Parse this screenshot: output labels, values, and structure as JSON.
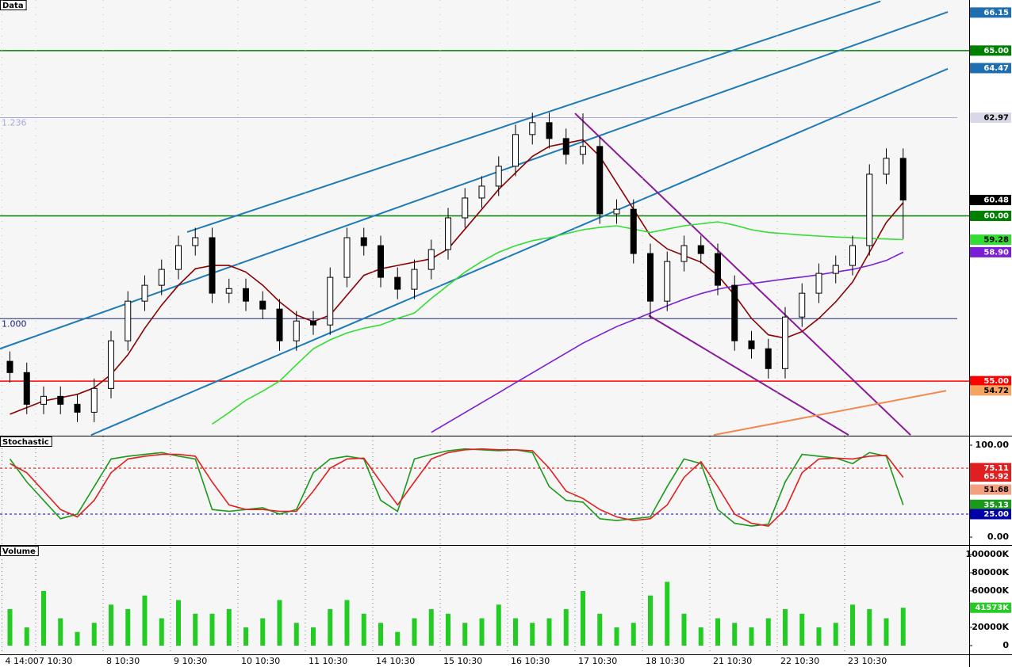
{
  "chart_data": [
    {
      "type": "candlestick",
      "title": "Data",
      "ylim": [
        53.35,
        66.53
      ],
      "open": [
        55.6,
        55.26,
        54.3,
        54.54,
        54.3,
        54.06,
        54.78,
        56.22,
        57.42,
        57.9,
        58.38,
        59.1,
        59.34,
        57.66,
        57.8,
        57.42,
        57.18,
        56.22,
        56.82,
        56.7,
        58.14,
        59.34,
        59.1,
        58.14,
        57.78,
        58.38,
        58.98,
        59.94,
        60.54,
        60.9,
        61.5,
        62.46,
        62.82,
        62.34,
        61.86,
        62.1,
        60.06,
        60.2,
        58.86,
        57.42,
        58.62,
        59.1,
        58.86,
        57.9,
        56.22,
        55.98,
        55.38,
        56.94,
        57.66,
        58.26,
        58.5,
        59.1,
        61.26,
        61.74
      ],
      "high": [
        55.9,
        55.56,
        54.84,
        54.84,
        54.6,
        55.08,
        56.52,
        57.72,
        58.2,
        58.68,
        59.4,
        59.64,
        59.64,
        58.1,
        58.1,
        57.72,
        57.48,
        57.12,
        57.12,
        58.44,
        59.64,
        59.64,
        59.4,
        58.44,
        58.68,
        59.28,
        60.24,
        60.84,
        61.2,
        61.8,
        62.76,
        63.12,
        63.12,
        62.64,
        63.1,
        62.4,
        60.5,
        60.5,
        59.16,
        58.92,
        59.4,
        59.4,
        59.16,
        58.2,
        56.52,
        56.28,
        57.24,
        57.96,
        58.56,
        58.8,
        59.4,
        61.56,
        62.04,
        62.04
      ],
      "low": [
        54.96,
        54.0,
        54.0,
        54.0,
        53.76,
        53.76,
        54.48,
        55.92,
        57.12,
        57.6,
        58.08,
        58.8,
        57.36,
        57.36,
        57.12,
        56.88,
        55.92,
        55.92,
        56.4,
        56.4,
        57.84,
        58.8,
        57.84,
        57.48,
        57.48,
        58.08,
        58.68,
        59.64,
        60.24,
        60.6,
        61.2,
        62.16,
        62.04,
        61.56,
        61.56,
        59.76,
        59.76,
        58.56,
        56.9,
        57.12,
        58.32,
        58.56,
        57.6,
        55.92,
        55.68,
        55.08,
        55.08,
        56.64,
        57.36,
        57.96,
        58.2,
        58.8,
        60.96,
        59.3
      ],
      "close": [
        55.26,
        54.3,
        54.54,
        54.3,
        54.06,
        54.78,
        56.22,
        57.42,
        57.9,
        58.38,
        59.1,
        59.34,
        57.66,
        57.8,
        57.42,
        57.18,
        56.22,
        56.82,
        56.7,
        58.14,
        59.34,
        59.1,
        58.14,
        57.78,
        58.38,
        58.98,
        59.94,
        60.54,
        60.9,
        61.5,
        62.46,
        62.82,
        62.34,
        61.86,
        62.1,
        60.06,
        60.2,
        58.86,
        57.42,
        58.62,
        59.1,
        58.86,
        57.9,
        56.22,
        55.98,
        55.38,
        56.94,
        57.66,
        58.26,
        58.5,
        59.1,
        61.26,
        61.74,
        60.48
      ],
      "series": [
        {
          "color": "#8b0000",
          "values": [
            54.0,
            54.2,
            54.4,
            54.5,
            54.6,
            54.8,
            55.2,
            55.8,
            56.6,
            57.3,
            57.9,
            58.4,
            58.5,
            58.5,
            58.3,
            57.9,
            57.4,
            57.0,
            56.8,
            57.0,
            57.6,
            58.2,
            58.4,
            58.5,
            58.6,
            58.7,
            59.0,
            59.6,
            60.2,
            60.8,
            61.3,
            61.8,
            62.1,
            62.2,
            62.3,
            61.8,
            61.0,
            60.2,
            59.4,
            59.0,
            58.8,
            58.6,
            58.2,
            57.6,
            56.9,
            56.4,
            56.3,
            56.5,
            56.9,
            57.4,
            58.0,
            58.9,
            59.8,
            60.4
          ]
        },
        {
          "color": "#33dd33",
          "values": [
            null,
            null,
            null,
            null,
            null,
            null,
            null,
            null,
            null,
            null,
            null,
            null,
            53.7,
            54.05,
            54.42,
            54.7,
            55.0,
            55.5,
            55.98,
            56.25,
            56.46,
            56.6,
            56.7,
            56.9,
            57.06,
            57.5,
            57.9,
            58.3,
            58.62,
            58.9,
            59.1,
            59.25,
            59.34,
            59.46,
            59.58,
            59.65,
            59.7,
            59.6,
            59.5,
            59.6,
            59.7,
            59.76,
            59.82,
            59.72,
            59.58,
            59.5,
            59.46,
            59.42,
            59.39,
            59.36,
            59.34,
            59.32,
            59.3,
            59.28
          ]
        },
        {
          "color": "#7b1fd6",
          "values": [
            null,
            null,
            null,
            null,
            null,
            null,
            null,
            null,
            null,
            null,
            null,
            null,
            null,
            null,
            null,
            null,
            null,
            null,
            null,
            null,
            null,
            null,
            null,
            null,
            null,
            53.45,
            53.75,
            54.05,
            54.35,
            54.65,
            54.95,
            55.25,
            55.55,
            55.85,
            56.15,
            56.4,
            56.65,
            56.85,
            57.06,
            57.28,
            57.48,
            57.65,
            57.78,
            57.88,
            57.95,
            58.02,
            58.09,
            58.15,
            58.22,
            58.3,
            58.38,
            58.5,
            58.65,
            58.9
          ]
        }
      ],
      "trendlines": [
        {
          "x": [
            10.52,
            51.65
          ],
          "y": [
            59.51,
            66.49
          ],
          "color": "#1f7ab8"
        },
        {
          "x": [
            -0.59,
            55.65
          ],
          "y": [
            55.98,
            66.17
          ],
          "color": "#1f7ab8"
        },
        {
          "x": [
            4.82,
            55.65
          ],
          "y": [
            53.37,
            64.45
          ],
          "color": "#1f7ab8"
        },
        {
          "x": [
            33.53,
            53.44
          ],
          "y": [
            63.1,
            53.37
          ],
          "color": "#8a1a9a"
        },
        {
          "x": [
            37.9,
            49.76
          ],
          "y": [
            56.99,
            53.37
          ],
          "color": "#8a1a9a"
        },
        {
          "x": [
            41.76,
            55.55
          ],
          "y": [
            53.37,
            54.71
          ],
          "color": "#f08a50"
        }
      ],
      "hlines": [
        {
          "value": 65,
          "color": "#008000"
        },
        {
          "value": 60,
          "color": "#008000"
        },
        {
          "value": 55,
          "color": "#ff0000"
        }
      ],
      "levels": [
        {
          "value": 62.97,
          "label": "1.236",
          "color": "#a9a9d9"
        },
        {
          "value": 56.89,
          "label": "1.000",
          "color": "#1a237e"
        }
      ],
      "tags": [
        {
          "value": 66.15,
          "color": "#1f6fb0"
        },
        {
          "value": 65,
          "label": "65.00",
          "color": "#008000"
        },
        {
          "value": 64.47,
          "color": "#1f6fb0"
        },
        {
          "value": 62.97,
          "color": "#d8d8e8"
        },
        {
          "value": 60.48,
          "color": "#000000"
        },
        {
          "value": 60,
          "label": "60.00",
          "color": "#008000"
        },
        {
          "value": 59.28,
          "color": "#33dd33"
        },
        {
          "value": 58.9,
          "label": "58.90",
          "color": "#7b1fd6"
        },
        {
          "value": 55,
          "label": "55.00",
          "color": "#ff0000"
        },
        {
          "value": 54.72,
          "color": "#f4a460"
        }
      ]
    },
    {
      "type": "line",
      "title": "Stochastic",
      "ylim": [
        -8.6,
        109.5
      ],
      "yticks": [
        {
          "value": 100,
          "label": "100.00"
        },
        {
          "value": 0,
          "label": "0.00"
        }
      ],
      "series": [
        {
          "color": "#1a9a1a",
          "values": [
            85,
            60,
            40,
            20,
            25,
            55,
            85,
            88,
            90,
            92,
            88,
            85,
            30,
            28,
            30,
            32,
            25,
            30,
            70,
            85,
            88,
            85,
            40,
            28,
            85,
            90,
            94,
            96,
            95,
            94,
            95,
            92,
            55,
            40,
            38,
            20,
            18,
            20,
            22,
            55,
            85,
            80,
            30,
            15,
            12,
            14,
            60,
            90,
            88,
            86,
            80,
            92,
            88,
            35
          ]
        },
        {
          "color": "#e02020",
          "values": [
            80,
            70,
            50,
            30,
            22,
            40,
            70,
            85,
            88,
            90,
            90,
            88,
            60,
            35,
            30,
            30,
            28,
            28,
            50,
            75,
            85,
            86,
            60,
            35,
            60,
            85,
            92,
            95,
            96,
            95,
            95,
            94,
            75,
            50,
            42,
            30,
            22,
            18,
            20,
            35,
            65,
            82,
            55,
            25,
            15,
            12,
            30,
            70,
            85,
            86,
            85,
            88,
            89,
            65
          ]
        }
      ],
      "hlines": [
        {
          "value": 75,
          "color": "#cc0000"
        },
        {
          "value": 25,
          "color": "#0000aa"
        }
      ],
      "line_style": "dashed",
      "tags": [
        {
          "value": 75.11,
          "color": "#e02020"
        },
        {
          "value": 65.92,
          "color": "#e02020"
        },
        {
          "value": 51.68,
          "color": "#f4a080"
        },
        {
          "value": 35.13,
          "color": "#1a9a1a"
        },
        {
          "value": 25,
          "label": "25.00",
          "color": "#0000aa"
        }
      ]
    },
    {
      "type": "bar",
      "title": "Volume",
      "ylim": [
        -9565,
        109565
      ],
      "color": "#22cc22",
      "yticks": [
        {
          "value": 100000,
          "label": "100000K"
        },
        {
          "value": 80000,
          "label": "80000K"
        },
        {
          "value": 60000,
          "label": "60000K"
        },
        {
          "value": 40000,
          "label": "40000K"
        },
        {
          "value": 20000,
          "label": "20000K"
        },
        0
      ],
      "values": [
        40000,
        20000,
        60000,
        30000,
        15000,
        25000,
        45000,
        40000,
        55000,
        30000,
        50000,
        35000,
        35000,
        40000,
        20000,
        30000,
        50000,
        25000,
        20000,
        40000,
        50000,
        35000,
        25000,
        15000,
        30000,
        40000,
        35000,
        25000,
        30000,
        45000,
        30000,
        25000,
        30000,
        40000,
        60000,
        35000,
        20000,
        25000,
        55000,
        70000,
        35000,
        20000,
        30000,
        25000,
        20000,
        30000,
        40000,
        35000,
        20000,
        25000,
        45000,
        40000,
        30000,
        41573
      ],
      "categories": [
        "4 14:00",
        null,
        "7 10:30",
        null,
        null,
        null,
        "8 10:30",
        null,
        null,
        null,
        "9 10:30",
        null,
        null,
        null,
        "10 10:30",
        null,
        null,
        null,
        "11 10:30",
        null,
        null,
        null,
        "14 10:30",
        null,
        null,
        null,
        "15 10:30",
        null,
        null,
        null,
        "16 10:30",
        null,
        null,
        null,
        "17 10:30",
        null,
        null,
        null,
        "18 10:30",
        null,
        null,
        null,
        "21 10:30",
        null,
        null,
        null,
        "22 10:30",
        null,
        null,
        null,
        "23 10:30",
        null,
        null,
        null
      ],
      "tags": [
        {
          "value": 41573,
          "label": "41573K",
          "color": "#22cc22"
        }
      ]
    }
  ]
}
